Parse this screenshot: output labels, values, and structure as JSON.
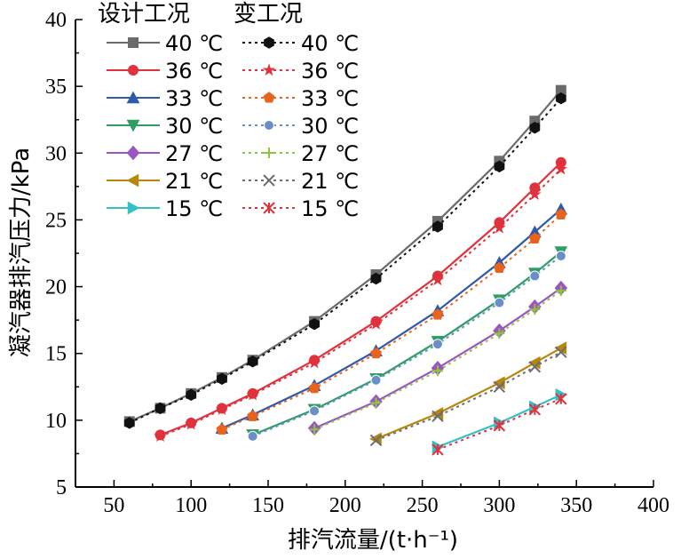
{
  "chart_data": {
    "type": "line",
    "xlabel": "排汽流量/(t·h⁻¹)",
    "ylabel": "凝汽器排汽压力/kPa",
    "xlim": [
      25,
      400
    ],
    "ylim": [
      5,
      40
    ],
    "xticks": [
      50,
      100,
      150,
      200,
      250,
      300,
      350,
      400
    ],
    "yticks": [
      5,
      10,
      15,
      20,
      25,
      30,
      35,
      40
    ],
    "grid": false,
    "legend_position": "top-left",
    "legend_groups": [
      "设计工况",
      "变工况"
    ],
    "series": [
      {
        "name": "40 ℃",
        "group": "设计工况",
        "color": "#6b6b6b",
        "style": "solid",
        "marker": "square",
        "x": [
          60,
          80,
          100,
          120,
          140,
          180,
          220,
          260,
          300,
          323,
          340
        ],
        "y": [
          9.9,
          10.9,
          12.0,
          13.2,
          14.5,
          17.4,
          20.9,
          24.9,
          29.4,
          32.4,
          34.7
        ]
      },
      {
        "name": "36 ℃",
        "group": "设计工况",
        "color": "#e0323c",
        "style": "solid",
        "marker": "circle",
        "x": [
          80,
          100,
          120,
          140,
          180,
          220,
          260,
          300,
          323,
          340
        ],
        "y": [
          8.9,
          9.8,
          10.9,
          12.0,
          14.5,
          17.4,
          20.8,
          24.8,
          27.4,
          29.3
        ]
      },
      {
        "name": "33 ℃",
        "group": "设计工况",
        "color": "#2e5aa8",
        "style": "solid",
        "marker": "triangle-up",
        "x": [
          120,
          140,
          180,
          220,
          260,
          300,
          323,
          340
        ],
        "y": [
          9.4,
          10.4,
          12.6,
          15.2,
          18.2,
          21.8,
          24.1,
          25.8
        ]
      },
      {
        "name": "30 ℃",
        "group": "设计工况",
        "color": "#2e9e62",
        "style": "solid",
        "marker": "triangle-down",
        "x": [
          140,
          180,
          220,
          260,
          300,
          323,
          340
        ],
        "y": [
          8.9,
          10.8,
          13.1,
          15.9,
          19.0,
          21.0,
          22.6
        ]
      },
      {
        "name": "27 ℃",
        "group": "设计工况",
        "color": "#9a55c0",
        "style": "solid",
        "marker": "diamond",
        "x": [
          180,
          220,
          260,
          300,
          323,
          340
        ],
        "y": [
          9.4,
          11.4,
          13.9,
          16.7,
          18.5,
          19.9
        ]
      },
      {
        "name": "21 ℃",
        "group": "设计工况",
        "color": "#b8860b",
        "style": "solid",
        "marker": "triangle-left",
        "x": [
          220,
          260,
          300,
          323,
          340
        ],
        "y": [
          8.6,
          10.5,
          12.8,
          14.3,
          15.4
        ]
      },
      {
        "name": "15 ℃",
        "group": "设计工况",
        "color": "#35c0c8",
        "style": "solid",
        "marker": "triangle-right",
        "x": [
          260,
          300,
          323,
          340
        ],
        "y": [
          8.0,
          9.8,
          11.0,
          11.9
        ]
      },
      {
        "name": "40 ℃",
        "group": "变工况",
        "color": "#111111",
        "style": "dotted",
        "marker": "hexagon",
        "x": [
          60,
          80,
          100,
          120,
          140,
          180,
          220,
          260,
          300,
          323,
          340
        ],
        "y": [
          9.8,
          10.9,
          11.9,
          13.1,
          14.4,
          17.2,
          20.6,
          24.5,
          29.0,
          31.9,
          34.1
        ]
      },
      {
        "name": "36 ℃",
        "group": "变工况",
        "color": "#e0323c",
        "style": "dotted",
        "marker": "star",
        "x": [
          80,
          100,
          120,
          140,
          180,
          220,
          260,
          300,
          323,
          340
        ],
        "y": [
          8.8,
          9.7,
          10.8,
          11.9,
          14.3,
          17.2,
          20.5,
          24.4,
          26.9,
          28.8
        ]
      },
      {
        "name": "33 ℃",
        "group": "变工况",
        "color": "#e8641e",
        "style": "dotted",
        "marker": "pentagon",
        "x": [
          120,
          140,
          180,
          220,
          260,
          300,
          323,
          340
        ],
        "y": [
          9.3,
          10.3,
          12.4,
          15.0,
          17.9,
          21.4,
          23.6,
          25.4
        ]
      },
      {
        "name": "30 ℃",
        "group": "变工况",
        "color": "#6a8fc8",
        "style": "dotted",
        "marker": "circle-small",
        "x": [
          140,
          180,
          220,
          260,
          300,
          323,
          340
        ],
        "y": [
          8.8,
          10.7,
          13.0,
          15.7,
          18.8,
          20.8,
          22.3
        ]
      },
      {
        "name": "27 ℃",
        "group": "变工况",
        "color": "#8cc63f",
        "style": "dotted",
        "marker": "plus",
        "x": [
          180,
          220,
          260,
          300,
          323,
          340
        ],
        "y": [
          9.3,
          11.3,
          13.7,
          16.5,
          18.3,
          19.7
        ]
      },
      {
        "name": "21 ℃",
        "group": "变工况",
        "color": "#6e6e6e",
        "style": "dotted",
        "marker": "x",
        "x": [
          220,
          260,
          300,
          323,
          340
        ],
        "y": [
          8.5,
          10.3,
          12.5,
          14.0,
          15.1
        ]
      },
      {
        "name": "15 ℃",
        "group": "变工况",
        "color": "#e0323c",
        "style": "dotted",
        "marker": "asterisk",
        "x": [
          260,
          300,
          323,
          340
        ],
        "y": [
          7.8,
          9.6,
          10.8,
          11.6
        ]
      }
    ]
  }
}
